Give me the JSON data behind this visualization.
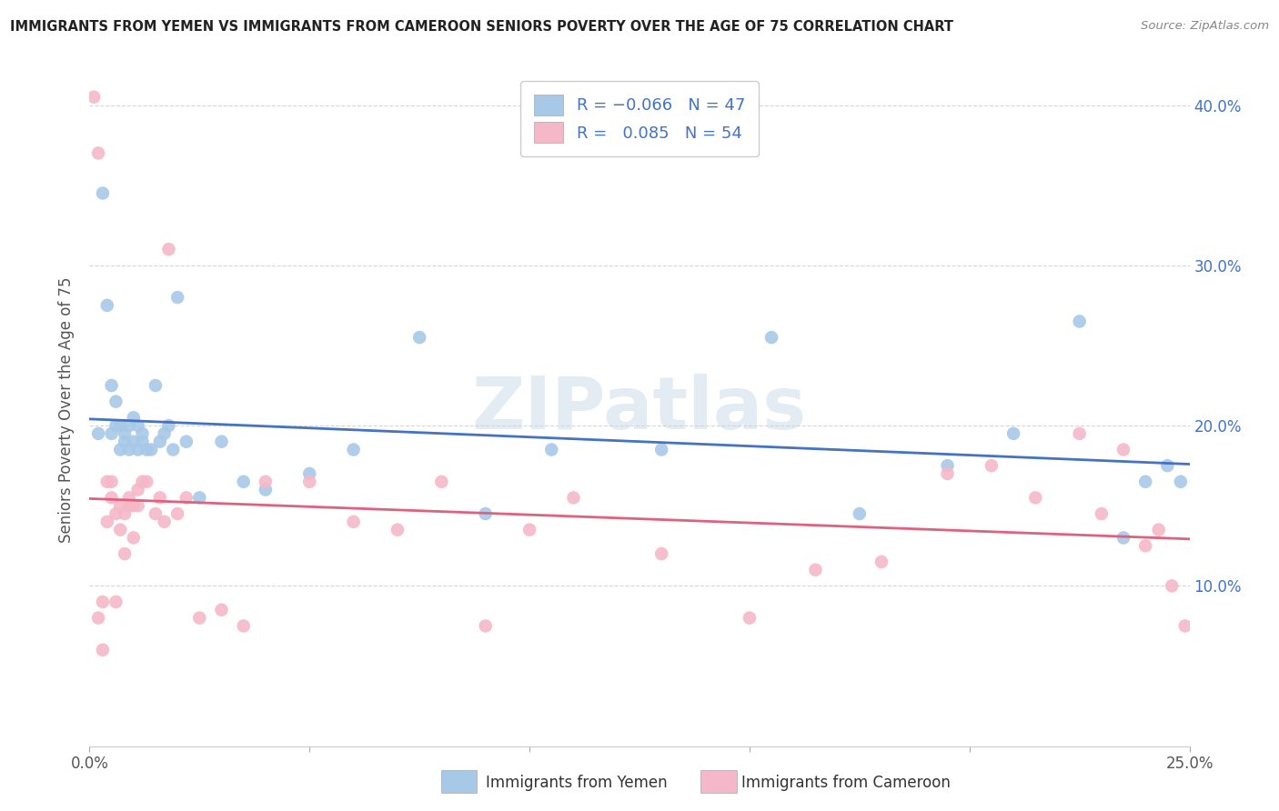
{
  "title": "IMMIGRANTS FROM YEMEN VS IMMIGRANTS FROM CAMEROON SENIORS POVERTY OVER THE AGE OF 75 CORRELATION CHART",
  "source": "Source: ZipAtlas.com",
  "ylabel": "Seniors Poverty Over the Age of 75",
  "xlabel_legend1": "Immigrants from Yemen",
  "xlabel_legend2": "Immigrants from Cameroon",
  "watermark": "ZIPatlas",
  "xlim": [
    0.0,
    0.25
  ],
  "ylim": [
    0.0,
    0.42
  ],
  "xticks": [
    0.0,
    0.05,
    0.1,
    0.15,
    0.2,
    0.25
  ],
  "xtick_labels": [
    "0.0%",
    "",
    "",
    "",
    "",
    "25.0%"
  ],
  "yticks": [
    0.0,
    0.1,
    0.2,
    0.3,
    0.4
  ],
  "ytick_labels": [
    "",
    "10.0%",
    "20.0%",
    "30.0%",
    "40.0%"
  ],
  "color_yemen": "#a8c8e8",
  "color_cameroon": "#f4b8c8",
  "line_color_yemen": "#4472c4",
  "line_color_cameroon": "#e06080",
  "background_color": "#ffffff",
  "yemen_x": [
    0.002,
    0.003,
    0.004,
    0.005,
    0.005,
    0.006,
    0.006,
    0.007,
    0.007,
    0.008,
    0.008,
    0.009,
    0.009,
    0.01,
    0.01,
    0.011,
    0.011,
    0.012,
    0.012,
    0.013,
    0.014,
    0.015,
    0.016,
    0.017,
    0.018,
    0.019,
    0.02,
    0.022,
    0.025,
    0.03,
    0.035,
    0.04,
    0.05,
    0.06,
    0.075,
    0.09,
    0.105,
    0.13,
    0.155,
    0.175,
    0.195,
    0.21,
    0.225,
    0.235,
    0.24,
    0.245,
    0.248
  ],
  "yemen_y": [
    0.195,
    0.345,
    0.275,
    0.195,
    0.225,
    0.2,
    0.215,
    0.185,
    0.2,
    0.19,
    0.195,
    0.185,
    0.2,
    0.19,
    0.205,
    0.185,
    0.2,
    0.19,
    0.195,
    0.185,
    0.185,
    0.225,
    0.19,
    0.195,
    0.2,
    0.185,
    0.28,
    0.19,
    0.155,
    0.19,
    0.165,
    0.16,
    0.17,
    0.185,
    0.255,
    0.145,
    0.185,
    0.185,
    0.255,
    0.145,
    0.175,
    0.195,
    0.265,
    0.13,
    0.165,
    0.175,
    0.165
  ],
  "cameroon_x": [
    0.001,
    0.002,
    0.002,
    0.003,
    0.003,
    0.004,
    0.004,
    0.005,
    0.005,
    0.006,
    0.006,
    0.007,
    0.007,
    0.008,
    0.008,
    0.009,
    0.009,
    0.01,
    0.01,
    0.011,
    0.011,
    0.012,
    0.013,
    0.015,
    0.016,
    0.017,
    0.018,
    0.02,
    0.022,
    0.025,
    0.03,
    0.035,
    0.04,
    0.05,
    0.06,
    0.07,
    0.08,
    0.09,
    0.1,
    0.11,
    0.13,
    0.15,
    0.165,
    0.18,
    0.195,
    0.205,
    0.215,
    0.225,
    0.23,
    0.235,
    0.24,
    0.243,
    0.246,
    0.249
  ],
  "cameroon_y": [
    0.405,
    0.08,
    0.37,
    0.09,
    0.06,
    0.165,
    0.14,
    0.155,
    0.165,
    0.09,
    0.145,
    0.135,
    0.15,
    0.12,
    0.145,
    0.15,
    0.155,
    0.15,
    0.13,
    0.16,
    0.15,
    0.165,
    0.165,
    0.145,
    0.155,
    0.14,
    0.31,
    0.145,
    0.155,
    0.08,
    0.085,
    0.075,
    0.165,
    0.165,
    0.14,
    0.135,
    0.165,
    0.075,
    0.135,
    0.155,
    0.12,
    0.08,
    0.11,
    0.115,
    0.17,
    0.175,
    0.155,
    0.195,
    0.145,
    0.185,
    0.125,
    0.135,
    0.1,
    0.075
  ]
}
